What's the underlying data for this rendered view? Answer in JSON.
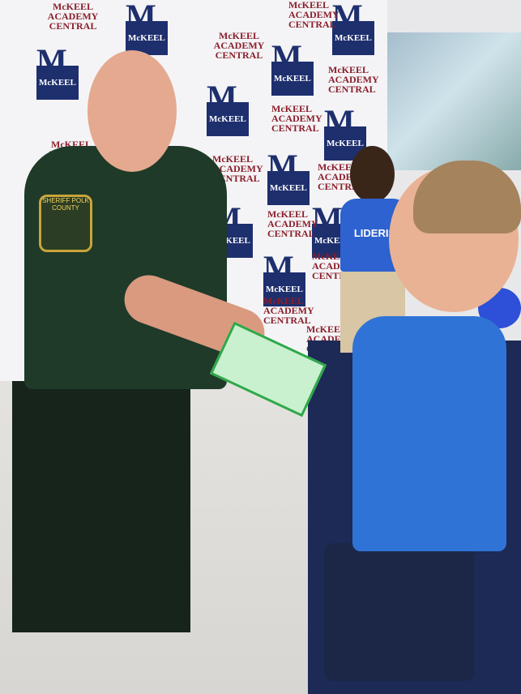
{
  "scene": {
    "backdrop_logo": "McKEEL",
    "backdrop_text": "McKEEL ACADEMY CENTRAL",
    "badge_text": "SHERIFF POLK COUNTY",
    "kid_shirt_text": "LIDERIS"
  },
  "colors": {
    "navy": "#1e2f6e",
    "maroon": "#8a1f2b",
    "uniform": "#1f3a28",
    "shirt": "#2f73d6"
  }
}
